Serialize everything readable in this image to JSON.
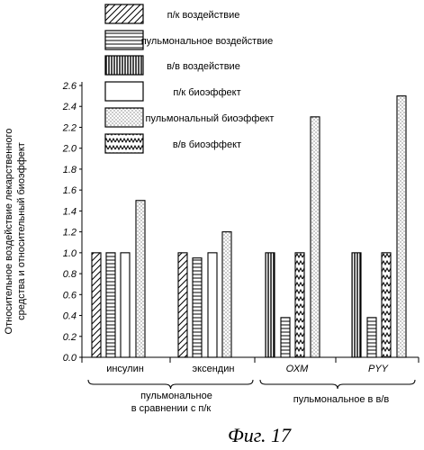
{
  "figure_caption": "Фиг. 17",
  "chart_data": {
    "type": "bar",
    "ylabel_line1": "Относительное воздействие лекарственного",
    "ylabel_line2": "средства и относительный биоэффект",
    "ylim": [
      0,
      2.6
    ],
    "yticks": [
      "0.0",
      "0.2",
      "0.4",
      "0.6",
      "0.8",
      "1.0",
      "1.2",
      "1.4",
      "1.6",
      "1.8",
      "2.0",
      "2.2",
      "2.4",
      "2.6"
    ],
    "grid": false,
    "legend_position": "top",
    "categories": [
      "инсулин",
      "эксендин",
      "ОХМ",
      "РYY"
    ],
    "series": [
      {
        "name": "п/к воздействие",
        "pattern": "diagonal",
        "values": [
          1.0,
          1.0,
          null,
          null
        ]
      },
      {
        "name": "пульмональное воздействие",
        "pattern": "horizontal",
        "values": [
          1.0,
          0.95,
          0.38,
          0.38
        ]
      },
      {
        "name": "в/в воздействие",
        "pattern": "vertical",
        "values": [
          null,
          null,
          1.0,
          1.0
        ]
      },
      {
        "name": "п/к биоэффект",
        "pattern": "blank",
        "values": [
          1.0,
          1.0,
          null,
          null
        ]
      },
      {
        "name": "пульмональный биоэффект",
        "pattern": "dots",
        "values": [
          1.5,
          1.2,
          2.3,
          2.5
        ]
      },
      {
        "name": "в/в биоэффект",
        "pattern": "wave",
        "values": [
          null,
          null,
          1.0,
          1.0
        ]
      }
    ],
    "group_labels": [
      "пульмональное\nв сравнении с п/к",
      "пульмональное в в/в"
    ]
  }
}
